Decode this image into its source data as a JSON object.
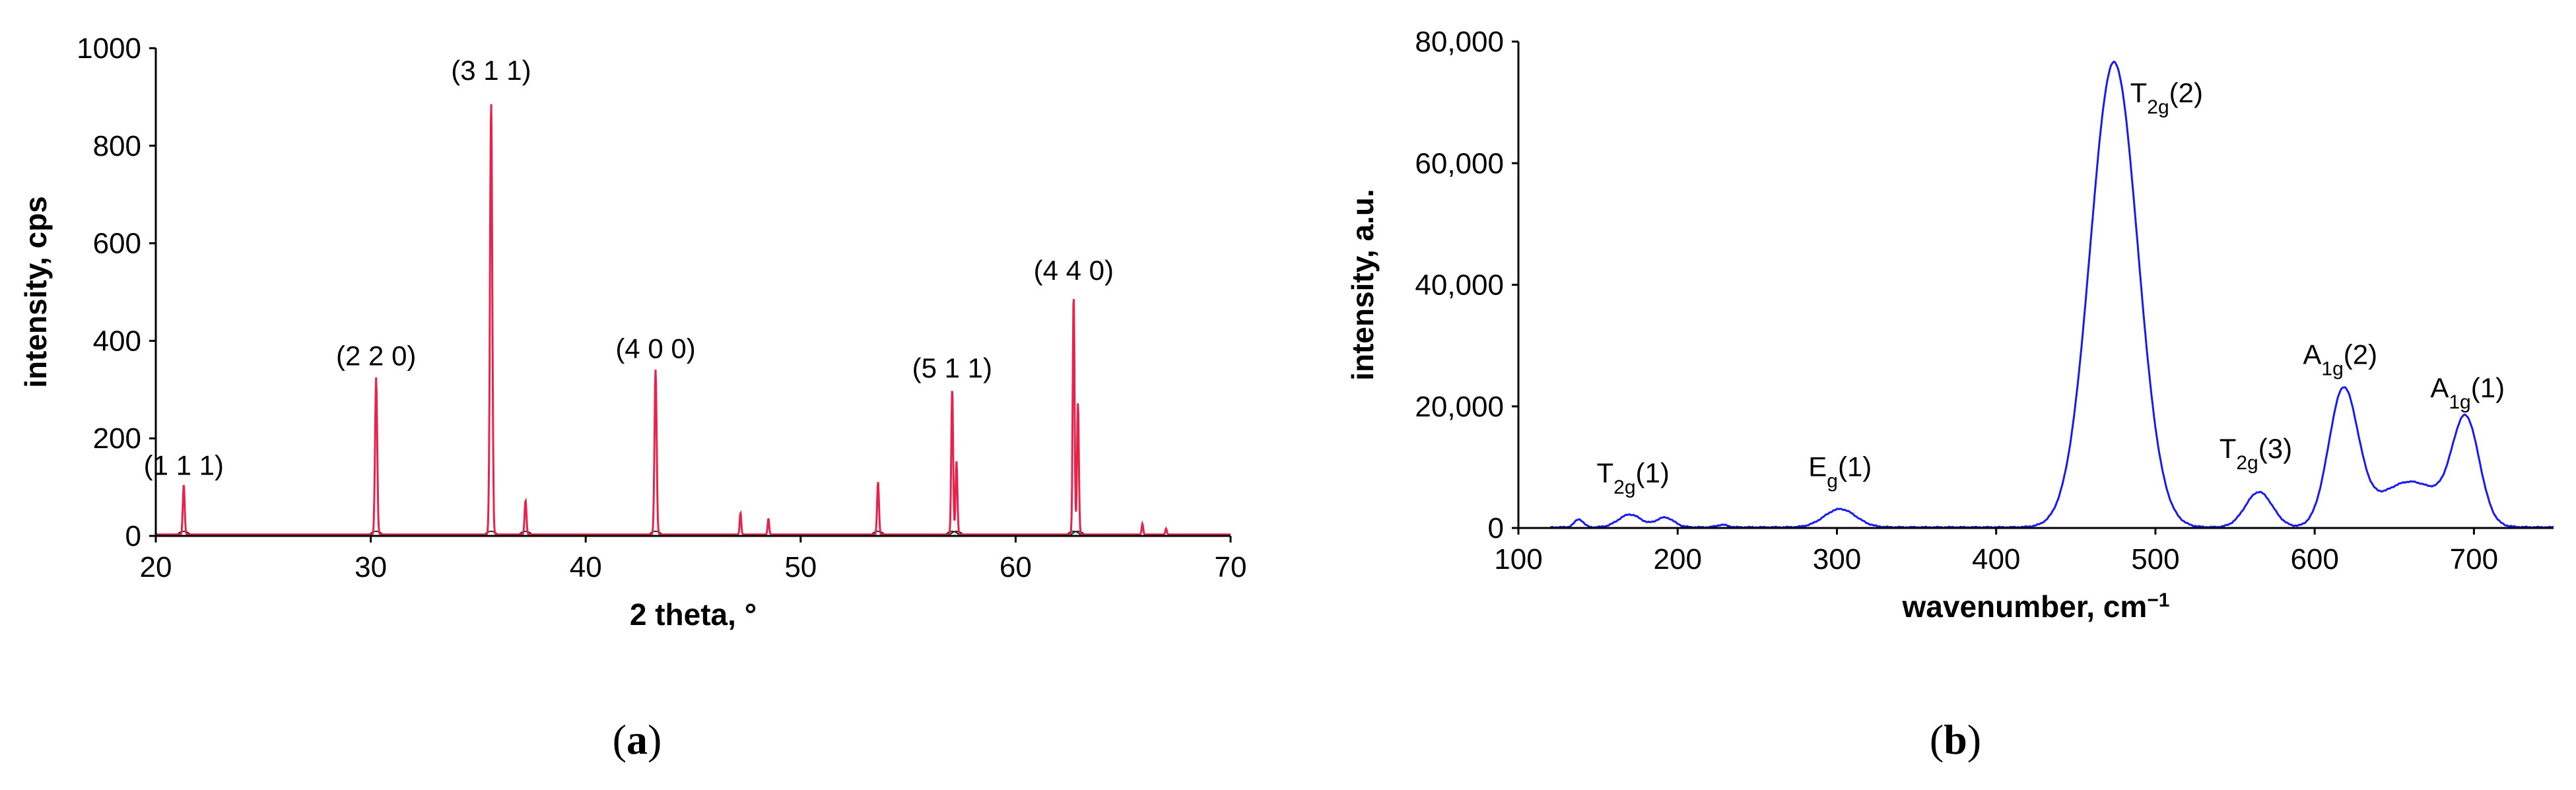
{
  "chart_data": [
    {
      "type": "line",
      "caption": {
        "open": "(",
        "letter": "a",
        "close": ")"
      },
      "xlabel": "2 theta, °",
      "ylabel": "intensity, cps",
      "xlim": [
        20,
        70
      ],
      "ylim": [
        0,
        1000
      ],
      "x_ticks": [
        20,
        30,
        40,
        50,
        60,
        70
      ],
      "y_ticks": [
        0,
        200,
        400,
        600,
        800,
        1000
      ],
      "color": "#e8224a",
      "grid": false,
      "peaks": [
        {
          "x": 21.3,
          "y": 103,
          "w": 0.06
        },
        {
          "x": 30.25,
          "y": 322,
          "w": 0.07
        },
        {
          "x": 35.6,
          "y": 885,
          "w": 0.075
        },
        {
          "x": 37.2,
          "y": 70,
          "w": 0.06
        },
        {
          "x": 43.25,
          "y": 338,
          "w": 0.07
        },
        {
          "x": 47.2,
          "y": 45,
          "w": 0.05
        },
        {
          "x": 48.5,
          "y": 33,
          "w": 0.05
        },
        {
          "x": 53.6,
          "y": 108,
          "w": 0.06
        },
        {
          "x": 57.05,
          "y": 300,
          "w": 0.06
        },
        {
          "x": 57.25,
          "y": 150,
          "w": 0.06
        },
        {
          "x": 62.7,
          "y": 492,
          "w": 0.06
        },
        {
          "x": 62.9,
          "y": 270,
          "w": 0.06
        },
        {
          "x": 65.9,
          "y": 22,
          "w": 0.05
        },
        {
          "x": 67.0,
          "y": 12,
          "w": 0.05
        }
      ],
      "annotations": [
        {
          "text": "(1 1 1)",
          "x": 21.3,
          "y": 125
        },
        {
          "text": "(2 2 0)",
          "x": 30.25,
          "y": 350
        },
        {
          "text": "(3 1 1)",
          "x": 35.6,
          "y": 935
        },
        {
          "text": "(4 0 0)",
          "x": 43.25,
          "y": 365
        },
        {
          "text": "(5 1 1)",
          "x": 57.05,
          "y": 325
        },
        {
          "text": "(4 4 0)",
          "x": 62.7,
          "y": 525
        }
      ]
    },
    {
      "type": "line",
      "caption": {
        "open": "(",
        "letter": "b",
        "close": ")"
      },
      "xlabel": "wavenumber, cm",
      "xlabel_sup": "−1",
      "ylabel": "intensity, a.u.",
      "xlim": [
        100,
        750
      ],
      "ylim": [
        0,
        80000
      ],
      "x_ticks": [
        100,
        200,
        300,
        400,
        500,
        600,
        700
      ],
      "y_ticks": [
        0,
        20000,
        40000,
        60000,
        80000
      ],
      "y_tick_labels": [
        "0",
        "20,000",
        "40,000",
        "60,000",
        "80,000"
      ],
      "color": "#1a1aee",
      "grid": false,
      "bands": [
        {
          "x": 138,
          "y": 1300,
          "w": 4
        },
        {
          "x": 170,
          "y": 2100,
          "w": 10
        },
        {
          "x": 192,
          "y": 1600,
          "w": 8
        },
        {
          "x": 228,
          "y": 400,
          "w": 5
        },
        {
          "x": 302,
          "y": 3000,
          "w": 14
        },
        {
          "x": 474,
          "y": 76500,
          "w": 21
        },
        {
          "x": 565,
          "y": 5800,
          "w": 12
        },
        {
          "x": 618,
          "y": 22000,
          "w": 13
        },
        {
          "x": 660,
          "y": 7500,
          "w": 30
        },
        {
          "x": 695,
          "y": 16500,
          "w": 12
        }
      ],
      "annotations": [
        {
          "base": "T",
          "sub": "2g",
          "tail": "(1)",
          "x": 172,
          "y": 7500
        },
        {
          "base": "E",
          "sub": "g",
          "tail": "(1)",
          "x": 302,
          "y": 8500
        },
        {
          "base": "T",
          "sub": "2g",
          "tail": "(2)",
          "x": 507,
          "y": 70000
        },
        {
          "base": "T",
          "sub": "2g",
          "tail": "(3)",
          "x": 563,
          "y": 11500
        },
        {
          "base": "A",
          "sub": "1g",
          "tail": "(2)",
          "x": 616,
          "y": 27000
        },
        {
          "base": "A",
          "sub": "1g",
          "tail": "(1)",
          "x": 696,
          "y": 21500
        }
      ]
    }
  ]
}
